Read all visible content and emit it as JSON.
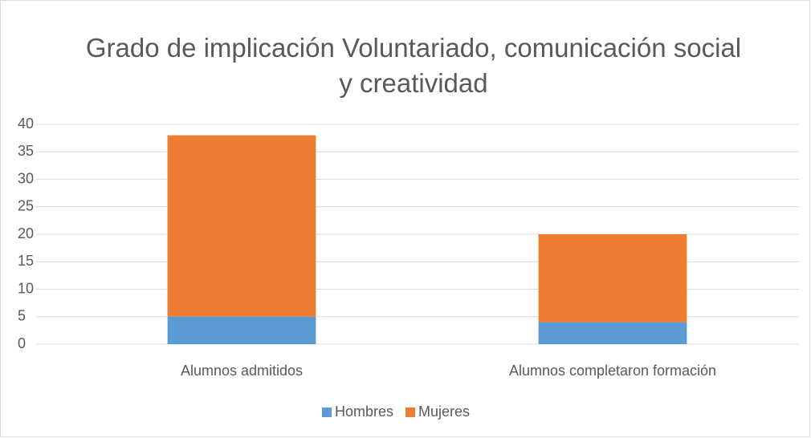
{
  "chart_data": {
    "type": "stacked_bar",
    "title": "Grado de implicación Voluntariado, comunicación social y creatividad",
    "categories": [
      "Alumnos admitidos",
      "Alumnos completaron formación"
    ],
    "series": [
      {
        "name": "Hombres",
        "color": "#5b9bd5",
        "values": [
          5,
          4
        ]
      },
      {
        "name": "Mujeres",
        "color": "#ed7d31",
        "values": [
          33,
          16
        ]
      }
    ],
    "ylim": [
      0,
      40
    ],
    "yticks": [
      0,
      5,
      10,
      15,
      20,
      25,
      30,
      35,
      40
    ],
    "grid": true,
    "legend": "bottom"
  }
}
